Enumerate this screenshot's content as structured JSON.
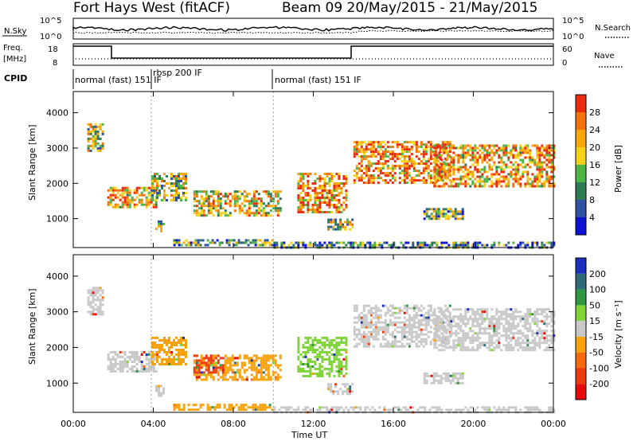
{
  "header": {
    "station": "Fort Hays West (fitACF)",
    "beam_date": "Beam 09  20/May/2015 - 21/May/2015"
  },
  "noise_panel": {
    "left_label": "N.Sky",
    "left_ticks": [
      "10^5",
      "10^0"
    ],
    "right_ticks": [
      "10^5",
      "10^0"
    ],
    "right_label": "N.Search",
    "right_label_style": "dotted"
  },
  "freq_panel": {
    "left_label_1": "Freq.",
    "left_label_2": "[MHz]",
    "left_ticks": [
      "18",
      "8"
    ],
    "right_ticks": [
      "60",
      "0"
    ],
    "right_label": "Nave",
    "right_label_style": "dotted"
  },
  "cpid_panel": {
    "label": "CPID",
    "segments": [
      {
        "text": "normal (fast) 151 IF",
        "start_hour": 0.0
      },
      {
        "text": "rbsp 200 IF",
        "start_hour": 3.9
      },
      {
        "text": "normal (fast) 151 IF",
        "start_hour": 10.0
      }
    ]
  },
  "chart_data": [
    {
      "type": "heatmap",
      "name": "power",
      "ylabel": "Slant Range [km]",
      "yticks": [
        1000,
        2000,
        3000,
        4000
      ],
      "ylim": [
        180,
        4600
      ],
      "xlim_hours": [
        0,
        24
      ],
      "colorbar_label": "Power [dB]",
      "colorbar_ticks": [
        4,
        8,
        12,
        16,
        20,
        24,
        28
      ],
      "colorbar_colors": [
        "#0b12d6",
        "#2d51a3",
        "#2f7a55",
        "#4db547",
        "#f7d21b",
        "#f5a70c",
        "#f2720c",
        "#ea2b0e"
      ],
      "echo_regions": [
        {
          "t0": 0.7,
          "t1": 1.5,
          "r0": 2900,
          "r1": 3700,
          "level": 0.5
        },
        {
          "t0": 1.7,
          "t1": 4.2,
          "r0": 1300,
          "r1": 1900,
          "level": 0.7
        },
        {
          "t0": 3.9,
          "t1": 5.6,
          "r0": 1500,
          "r1": 2300,
          "level": 0.5
        },
        {
          "t0": 4.1,
          "t1": 4.5,
          "r0": 650,
          "r1": 950,
          "level": 0.5
        },
        {
          "t0": 6.0,
          "t1": 10.4,
          "r0": 1100,
          "r1": 1800,
          "level": 0.6
        },
        {
          "t0": 5.0,
          "t1": 10.0,
          "r0": 220,
          "r1": 420,
          "level": 0.4
        },
        {
          "t0": 11.2,
          "t1": 13.6,
          "r0": 1200,
          "r1": 2300,
          "level": 0.75
        },
        {
          "t0": 12.7,
          "t1": 13.9,
          "r0": 700,
          "r1": 1000,
          "level": 0.5
        },
        {
          "t0": 14.0,
          "t1": 18.8,
          "r0": 2000,
          "r1": 3200,
          "level": 0.75
        },
        {
          "t0": 18.0,
          "t1": 24.0,
          "r0": 1900,
          "r1": 3100,
          "level": 0.7
        },
        {
          "t0": 17.5,
          "t1": 19.5,
          "r0": 1000,
          "r1": 1300,
          "level": 0.4
        },
        {
          "t0": 10.0,
          "t1": 24.0,
          "r0": 200,
          "r1": 350,
          "level": 0.3
        }
      ]
    },
    {
      "type": "heatmap",
      "name": "velocity",
      "ylabel": "Slant Range [km]",
      "yticks": [
        1000,
        2000,
        3000,
        4000
      ],
      "ylim": [
        180,
        4600
      ],
      "xlim_hours": [
        0,
        24
      ],
      "colorbar_label": "Velocity [m s⁻¹]",
      "colorbar_ticks": [
        200,
        100,
        50,
        15,
        -15,
        -50,
        -100,
        -200
      ],
      "colorbar_colors": [
        "#1d2fbd",
        "#2f6a7c",
        "#2f9642",
        "#80d43a",
        "#c8c8c8",
        "#f7a20c",
        "#f46a0c",
        "#ed3b11",
        "#e80a0a"
      ],
      "echo_regions": [
        {
          "t0": 0.7,
          "t1": 1.5,
          "r0": 2900,
          "r1": 3700,
          "color": "#c8c8c8"
        },
        {
          "t0": 1.7,
          "t1": 4.2,
          "r0": 1300,
          "r1": 1900,
          "color": "#c8c8c8"
        },
        {
          "t0": 3.9,
          "t1": 5.6,
          "r0": 1500,
          "r1": 2300,
          "color": "#f7a20c"
        },
        {
          "t0": 4.1,
          "t1": 4.5,
          "r0": 650,
          "r1": 950,
          "color": "#c8c8c8"
        },
        {
          "t0": 6.0,
          "t1": 10.4,
          "r0": 1100,
          "r1": 1800,
          "color": "#f7a20c"
        },
        {
          "t0": 6.0,
          "t1": 7.5,
          "r0": 1300,
          "r1": 1800,
          "color": "#ed3b11"
        },
        {
          "t0": 5.0,
          "t1": 10.0,
          "r0": 220,
          "r1": 420,
          "color": "#f7a20c"
        },
        {
          "t0": 11.2,
          "t1": 13.6,
          "r0": 1200,
          "r1": 2300,
          "color": "#80d43a"
        },
        {
          "t0": 12.7,
          "t1": 13.9,
          "r0": 700,
          "r1": 1000,
          "color": "#c8c8c8"
        },
        {
          "t0": 14.0,
          "t1": 18.8,
          "r0": 2000,
          "r1": 3200,
          "color": "#c8c8c8"
        },
        {
          "t0": 18.0,
          "t1": 24.0,
          "r0": 1900,
          "r1": 3100,
          "color": "#c8c8c8"
        },
        {
          "t0": 17.5,
          "t1": 19.5,
          "r0": 1000,
          "r1": 1300,
          "color": "#c8c8c8"
        },
        {
          "t0": 10.0,
          "t1": 24.0,
          "r0": 200,
          "r1": 350,
          "color": "#c8c8c8"
        }
      ]
    }
  ],
  "xaxis": {
    "ticks": [
      "00:00",
      "04:00",
      "08:00",
      "12:00",
      "16:00",
      "20:00",
      "00:00"
    ],
    "label": "Time UT"
  }
}
